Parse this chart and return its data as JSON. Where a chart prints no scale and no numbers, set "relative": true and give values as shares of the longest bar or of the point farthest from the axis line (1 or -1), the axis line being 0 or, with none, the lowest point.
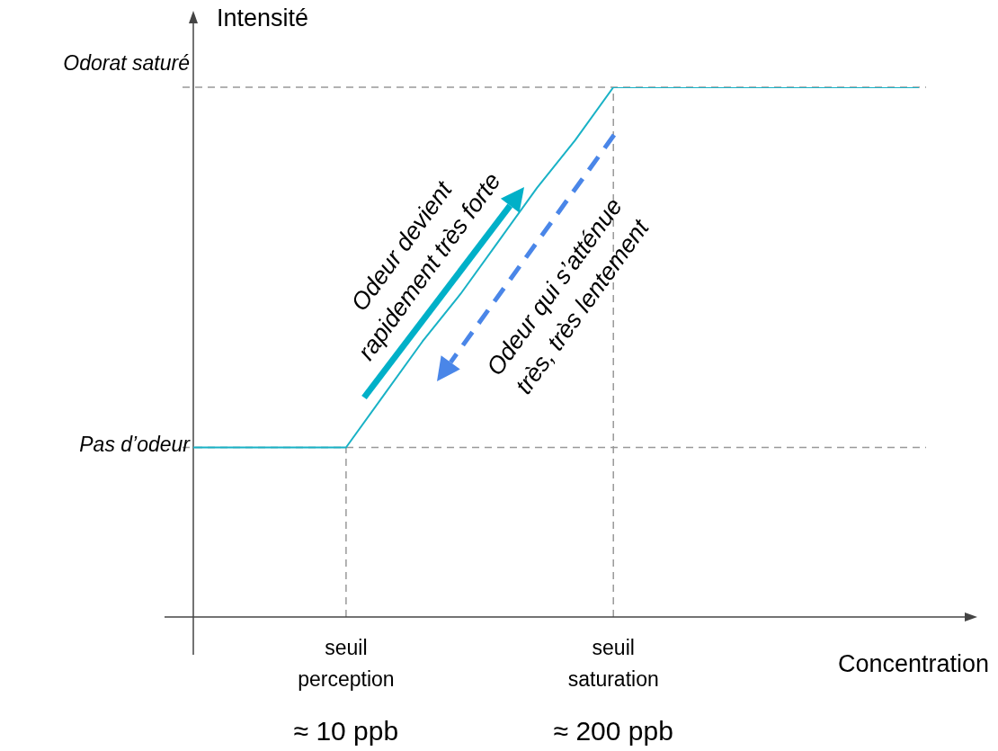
{
  "chart_data": {
    "type": "line",
    "relative": true,
    "xlabel": "Concentration",
    "ylabel": "Intensité",
    "categories": [
      null,
      null,
      null,
      null,
      "seuil perception",
      null,
      null,
      null,
      null,
      null,
      null,
      "seuil saturation",
      null,
      null,
      null,
      null,
      null,
      null,
      null,
      null
    ],
    "series": [
      {
        "color": "#19b2c6",
        "values": [
          0.32,
          0.32,
          0.32,
          0.32,
          0.32,
          0.42,
          0.52,
          0.61,
          0.71,
          0.81,
          0.9,
          1,
          1,
          1,
          1,
          1,
          1,
          1,
          1,
          1
        ]
      }
    ],
    "ref_lines": [
      {
        "axis": "y",
        "value": 0.32,
        "label": "Pas d’odeur",
        "color": "#999999",
        "line_style": "dashed"
      },
      {
        "axis": "y",
        "value": 1,
        "label": "Odorat saturé",
        "color": "#999999",
        "line_style": "dashed"
      },
      {
        "axis": "x",
        "value": "seuil perception",
        "color": "#999999",
        "line_style": "dashed"
      },
      {
        "axis": "x",
        "value": "seuil saturation",
        "color": "#999999",
        "line_style": "dashed"
      }
    ],
    "annotations": [
      "≈ 10 ppb",
      "≈ 200 ppb",
      "Odeur devient rapidement très forte",
      "Odeur qui s’atténue très, très lentement"
    ],
    "legend": false,
    "marker": "none",
    "line_style": "solid"
  }
}
